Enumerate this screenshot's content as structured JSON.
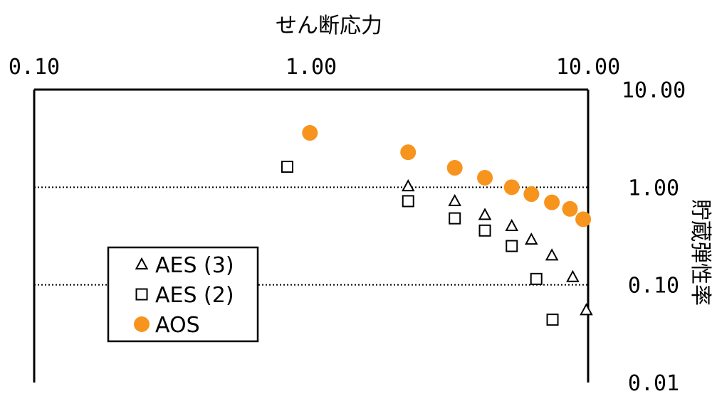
{
  "chart_data": {
    "type": "scatter",
    "xlabel": "せん断応力",
    "ylabel": "貯蔵弾性率",
    "x_scale": "log",
    "y_scale": "log",
    "xlim": [
      0.1,
      10
    ],
    "ylim": [
      0.01,
      10
    ],
    "x_ticks": [
      "0.10",
      "1.00",
      "10.00"
    ],
    "y_ticks": [
      "10.00",
      "1.00",
      "0.10",
      "0.01"
    ],
    "grid": "horizontal dotted at 1.00 and 0.10",
    "legend_position": "lower-left",
    "series": [
      {
        "name": "AES (3)",
        "marker": "triangle-open",
        "color": "#000000",
        "points": [
          [
            2.24,
            1.02
          ],
          [
            3.3,
            0.72
          ],
          [
            4.24,
            0.52
          ],
          [
            5.3,
            0.4
          ],
          [
            6.24,
            0.29
          ],
          [
            7.4,
            0.2
          ],
          [
            8.8,
            0.12
          ],
          [
            9.85,
            0.055
          ]
        ]
      },
      {
        "name": "AES (2)",
        "marker": "square-open",
        "color": "#000000",
        "points": [
          [
            0.82,
            1.62
          ],
          [
            2.24,
            0.72
          ],
          [
            3.3,
            0.48
          ],
          [
            4.24,
            0.36
          ],
          [
            5.3,
            0.25
          ],
          [
            6.5,
            0.115
          ],
          [
            7.44,
            0.044
          ]
        ]
      },
      {
        "name": "AOS",
        "marker": "circle-filled",
        "color": "#F7941D",
        "points": [
          [
            0.99,
            3.6
          ],
          [
            2.24,
            2.28
          ],
          [
            3.3,
            1.58
          ],
          [
            4.24,
            1.25
          ],
          [
            5.3,
            1.0
          ],
          [
            6.24,
            0.85
          ],
          [
            7.4,
            0.7
          ],
          [
            8.6,
            0.6
          ],
          [
            9.6,
            0.47
          ]
        ]
      }
    ]
  }
}
